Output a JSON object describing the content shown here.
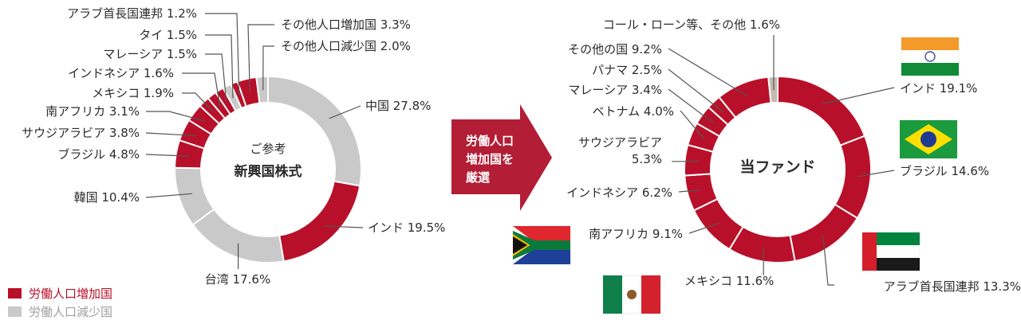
{
  "colors": {
    "increase": "#b8102a",
    "decrease": "#c9c9c9",
    "other": "#c8b8ae",
    "arrow": "#b31d35"
  },
  "arrow_text": [
    "労働人口",
    "増加国を",
    "厳選"
  ],
  "legend": [
    {
      "label": "労働人口増加国",
      "color": "#b8102a"
    },
    {
      "label": "労働人口減少国",
      "color": "#c9c9c9"
    }
  ],
  "chart_data": [
    {
      "type": "pie",
      "center": [
        "ご参考",
        "新興国株式"
      ],
      "slices": [
        {
          "name": "中国",
          "value": 27.8,
          "group": "decrease",
          "label": "中国 27.8%"
        },
        {
          "name": "インド",
          "value": 19.5,
          "group": "increase",
          "label": "インド 19.5%"
        },
        {
          "name": "台湾",
          "value": 17.6,
          "group": "decrease",
          "label": "台湾 17.6%"
        },
        {
          "name": "韓国",
          "value": 10.4,
          "group": "decrease",
          "label": "韓国 10.4%"
        },
        {
          "name": "ブラジル",
          "value": 4.8,
          "group": "increase",
          "label": "ブラジル 4.8%"
        },
        {
          "name": "サウジアラビア",
          "value": 3.8,
          "group": "increase",
          "label": "サウジアラビア 3.8%"
        },
        {
          "name": "南アフリカ",
          "value": 3.1,
          "group": "increase",
          "label": "南アフリカ 3.1%"
        },
        {
          "name": "メキシコ",
          "value": 1.9,
          "group": "increase",
          "label": "メキシコ 1.9%"
        },
        {
          "name": "インドネシア",
          "value": 1.6,
          "group": "increase",
          "label": "インドネシア 1.6%"
        },
        {
          "name": "マレーシア",
          "value": 1.5,
          "group": "increase",
          "label": "マレーシア 1.5%"
        },
        {
          "name": "タイ",
          "value": 1.5,
          "group": "decrease",
          "label": "タイ 1.5%"
        },
        {
          "name": "アラブ首長国連邦",
          "value": 1.2,
          "group": "increase",
          "label": "アラブ首長国連邦 1.2%"
        },
        {
          "name": "その他人口増加国",
          "value": 3.3,
          "group": "increase",
          "label": "その他人口増加国 3.3%"
        },
        {
          "name": "その他人口減少国",
          "value": 2.0,
          "group": "decrease",
          "label": "その他人口減少国 2.0%"
        }
      ]
    },
    {
      "type": "pie",
      "center": [
        "当ファンド"
      ],
      "slices": [
        {
          "name": "インド",
          "value": 19.1,
          "group": "increase",
          "label": "インド 19.1%",
          "flag": "india-flag-icon"
        },
        {
          "name": "ブラジル",
          "value": 14.6,
          "group": "increase",
          "label": "ブラジル 14.6%",
          "flag": "brazil-flag-icon"
        },
        {
          "name": "アラブ首長国連邦",
          "value": 13.3,
          "group": "increase",
          "label": "アラブ首長国連邦 13.3%",
          "flag": "uae-flag-icon"
        },
        {
          "name": "メキシコ",
          "value": 11.6,
          "group": "increase",
          "label": "メキシコ 11.6%",
          "flag": "mexico-flag-icon"
        },
        {
          "name": "南アフリカ",
          "value": 9.1,
          "group": "increase",
          "label": "南アフリカ 9.1%",
          "flag": "south-africa-flag-icon"
        },
        {
          "name": "インドネシア",
          "value": 6.2,
          "group": "increase",
          "label": "インドネシア 6.2%"
        },
        {
          "name": "サウジアラビア",
          "value": 5.3,
          "group": "increase",
          "label": [
            "サウジアラビア",
            "5.3%"
          ]
        },
        {
          "name": "ベトナム",
          "value": 4.0,
          "group": "increase",
          "label": "ベトナム 4.0%"
        },
        {
          "name": "マレーシア",
          "value": 3.4,
          "group": "increase",
          "label": "マレーシア 3.4%"
        },
        {
          "name": "パナマ",
          "value": 2.5,
          "group": "increase",
          "label": "パナマ 2.5%"
        },
        {
          "name": "その他の国",
          "value": 9.2,
          "group": "increase",
          "label": "その他の国 9.2%"
        },
        {
          "name": "コール・ローン等、その他",
          "value": 1.6,
          "group": "other",
          "label": "コール・ローン等、その他 1.6%"
        }
      ]
    }
  ]
}
